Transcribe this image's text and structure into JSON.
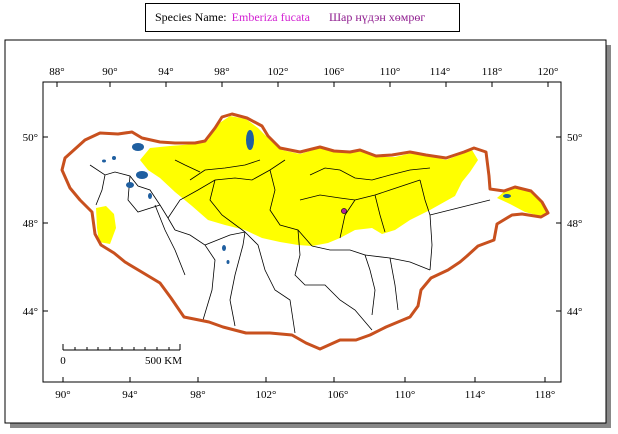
{
  "species_label": "Species Name:",
  "scientific_name": "Emberiza fucata",
  "local_name": "Шар нүдэн хөмрөг",
  "colors": {
    "border": "#c8501e",
    "range": "#ffff00",
    "water": "#1f5fa0",
    "title_sci": "#d21fd2",
    "title_local": "#8e1b8e",
    "shadow": "#888888"
  },
  "top_lon_ticks": [
    "88°",
    "90°",
    "94°",
    "98°",
    "102°",
    "106°",
    "110°",
    "114°",
    "118°",
    "120°"
  ],
  "bottom_lon_ticks": [
    "90°",
    "94°",
    "98°",
    "102°",
    "106°",
    "110°",
    "114°",
    "118°"
  ],
  "lat_ticks_left": [
    "50°",
    "48°",
    "44°"
  ],
  "lat_ticks_right": [
    "50°",
    "48°",
    "44°"
  ],
  "scale_bar": {
    "start": "0",
    "end": "500 KM"
  }
}
